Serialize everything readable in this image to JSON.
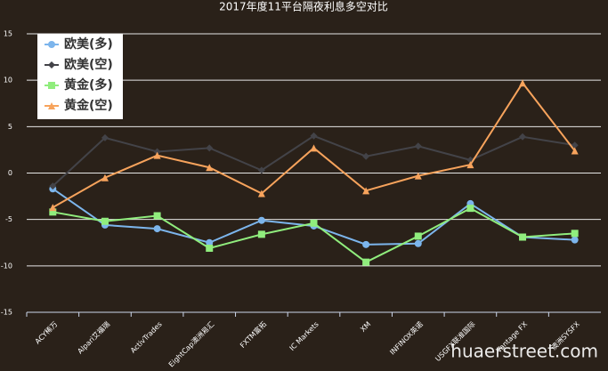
{
  "chart_data": {
    "type": "line",
    "title": "2017年度11平台隔夜利息多空对比",
    "categories": [
      "ACY稀万",
      "Alpari艾福瑞",
      "ActivTrades",
      "EightCap澳洲易汇",
      "FXTM富拓",
      "IC Markets",
      "XM",
      "INFINOX英诺",
      "USGFX联准国际",
      "Vantage FX",
      "澳洲SYSFX"
    ],
    "series": [
      {
        "name": "欧美(多)",
        "color": "#7cb5ec",
        "marker": "circle",
        "values": [
          -1.7,
          -5.6,
          -6.0,
          -7.5,
          -5.1,
          -5.7,
          -7.7,
          -7.6,
          -3.3,
          -6.9,
          -7.2
        ]
      },
      {
        "name": "欧美(空)",
        "color": "#434348",
        "marker": "diamond",
        "values": [
          -1.4,
          3.8,
          2.3,
          2.7,
          0.3,
          4.0,
          1.8,
          2.9,
          1.4,
          3.9,
          3.0
        ]
      },
      {
        "name": "黄金(多)",
        "color": "#90ed7d",
        "marker": "square",
        "values": [
          -4.2,
          -5.2,
          -4.6,
          -8.1,
          -6.6,
          -5.4,
          -9.6,
          -6.8,
          -3.8,
          -6.9,
          -6.5
        ]
      },
      {
        "name": "黄金(空)",
        "color": "#f7a35c",
        "marker": "triangle",
        "values": [
          -3.7,
          -0.5,
          1.9,
          0.6,
          -2.2,
          2.7,
          -1.9,
          -0.3,
          0.9,
          9.7,
          2.4
        ]
      }
    ],
    "ylim": [
      -15,
      15
    ],
    "yticks": [
      -15,
      -10,
      -5,
      0,
      5,
      10,
      15
    ],
    "grid": true,
    "legend": "top-left",
    "watermark": "huaerstreet.com"
  }
}
